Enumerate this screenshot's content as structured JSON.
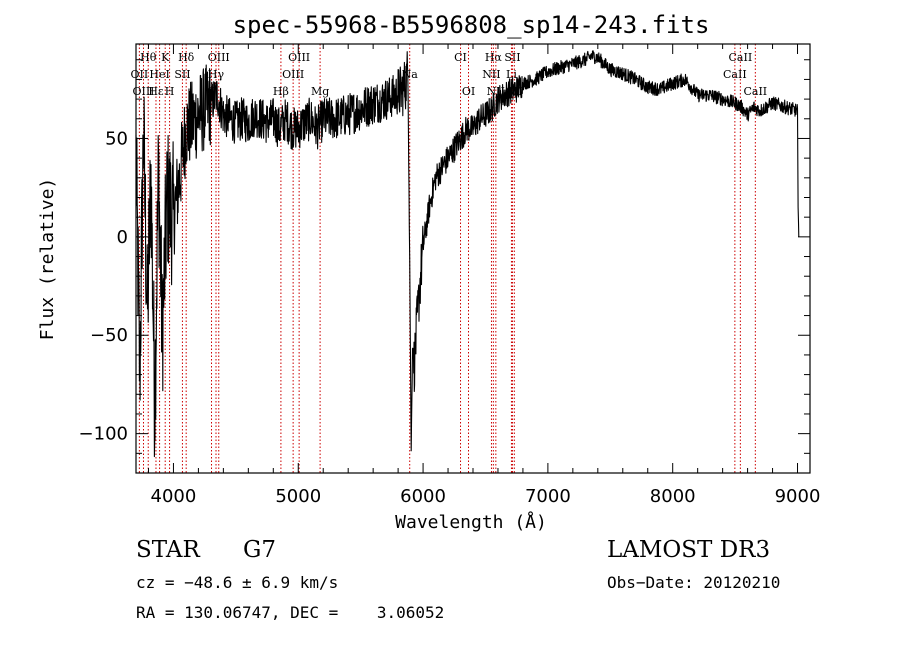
{
  "chart_data": {
    "type": "line",
    "title": "spec-55968-B5596808_sp14-243.fits",
    "xlabel": "Wavelength (Å)",
    "ylabel": "Flux (relative)",
    "xlim": [
      3700,
      9100
    ],
    "ylim": [
      -120,
      98
    ],
    "xticks": [
      4000,
      5000,
      6000,
      7000,
      8000,
      9000
    ],
    "yticks": [
      -100,
      -50,
      0,
      50
    ],
    "series": [
      {
        "name": "flux",
        "x": [
          3700,
          3730,
          3760,
          3790,
          3820,
          3850,
          3880,
          3910,
          3950,
          4000,
          4050,
          4100,
          4150,
          4200,
          4250,
          4300,
          4350,
          4400,
          4450,
          4500,
          4550,
          4600,
          4650,
          4700,
          4750,
          4800,
          4850,
          4900,
          4950,
          5000,
          5050,
          5100,
          5150,
          5200,
          5300,
          5400,
          5500,
          5600,
          5700,
          5780,
          5830,
          5860,
          5880,
          5895,
          5905,
          5915,
          5930,
          5950,
          5980,
          6000,
          6050,
          6100,
          6150,
          6200,
          6250,
          6300,
          6350,
          6400,
          6450,
          6500,
          6550,
          6600,
          6650,
          6700,
          6750,
          6800,
          6900,
          7000,
          7100,
          7200,
          7300,
          7350,
          7400,
          7450,
          7500,
          7600,
          7700,
          7800,
          7900,
          8000,
          8100,
          8200,
          8300,
          8400,
          8500,
          8550,
          8600,
          8650,
          8700,
          8800,
          8900,
          9000,
          9005,
          9010
        ],
        "y": [
          40,
          -70,
          55,
          -40,
          30,
          -85,
          35,
          -50,
          20,
          10,
          30,
          55,
          58,
          62,
          65,
          68,
          72,
          62,
          60,
          58,
          60,
          58,
          62,
          60,
          58,
          60,
          55,
          60,
          55,
          55,
          58,
          60,
          55,
          60,
          60,
          62,
          65,
          68,
          70,
          72,
          74,
          78,
          85,
          -30,
          -110,
          -55,
          -65,
          -45,
          -20,
          -5,
          15,
          30,
          35,
          40,
          45,
          50,
          55,
          55,
          60,
          62,
          65,
          70,
          72,
          74,
          75,
          78,
          80,
          84,
          86,
          88,
          90,
          92,
          91,
          88,
          85,
          83,
          80,
          76,
          75,
          78,
          80,
          72,
          72,
          70,
          68,
          66,
          62,
          66,
          64,
          68,
          66,
          64,
          15,
          0
        ]
      }
    ],
    "line_markers": [
      {
        "label": "Hθ",
        "x": 3798,
        "row": 1
      },
      {
        "label": "K",
        "x": 3934,
        "row": 1
      },
      {
        "label": "Hδ",
        "x": 4102,
        "row": 1
      },
      {
        "label": "OIII",
        "x": 4363,
        "row": 1
      },
      {
        "label": "OIII",
        "x": 5007,
        "row": 1
      },
      {
        "label": "CI",
        "x": 6300,
        "row": 1
      },
      {
        "label": "Hα",
        "x": 6563,
        "row": 1
      },
      {
        "label": "SII",
        "x": 6716,
        "row": 1
      },
      {
        "label": "CaII",
        "x": 8542,
        "row": 1
      },
      {
        "label": "OII",
        "x": 3727,
        "row": 2
      },
      {
        "label": "HeI",
        "x": 3889,
        "row": 2
      },
      {
        "label": "SII",
        "x": 4072,
        "row": 2
      },
      {
        "label": "Hγ",
        "x": 4341,
        "row": 2
      },
      {
        "label": "OIII",
        "x": 4959,
        "row": 2
      },
      {
        "label": "Na",
        "x": 5893,
        "row": 2
      },
      {
        "label": "NII",
        "x": 6548,
        "row": 2
      },
      {
        "label": "Li",
        "x": 6708,
        "row": 2
      },
      {
        "label": "CaII",
        "x": 8498,
        "row": 2
      },
      {
        "label": "OIII",
        "x": 3760,
        "row": 3
      },
      {
        "label": "Hε",
        "x": 3860,
        "row": 3
      },
      {
        "label": "H",
        "x": 3969,
        "row": 3
      },
      {
        "label": "G",
        "x": 4305,
        "row": 3
      },
      {
        "label": "Hβ",
        "x": 4861,
        "row": 3
      },
      {
        "label": "Mg",
        "x": 5175,
        "row": 3
      },
      {
        "label": "OI",
        "x": 6364,
        "row": 3
      },
      {
        "label": "NII",
        "x": 6583,
        "row": 3
      },
      {
        "label": "SII",
        "x": 6731,
        "row": 3
      },
      {
        "label": "CaII",
        "x": 8662,
        "row": 3
      }
    ]
  },
  "info": {
    "object_class": "STAR",
    "subclass": "G7",
    "survey": "LAMOST DR3",
    "cz": "cz = −48.6 ± 6.9 km/s",
    "obs_date": "Obs−Date: 20120210",
    "coords": "RA = 130.06747, DEC =    3.06052"
  },
  "colors": {
    "spectrum": "#000000",
    "line_marker": "#cc0000",
    "axes": "#000000"
  }
}
